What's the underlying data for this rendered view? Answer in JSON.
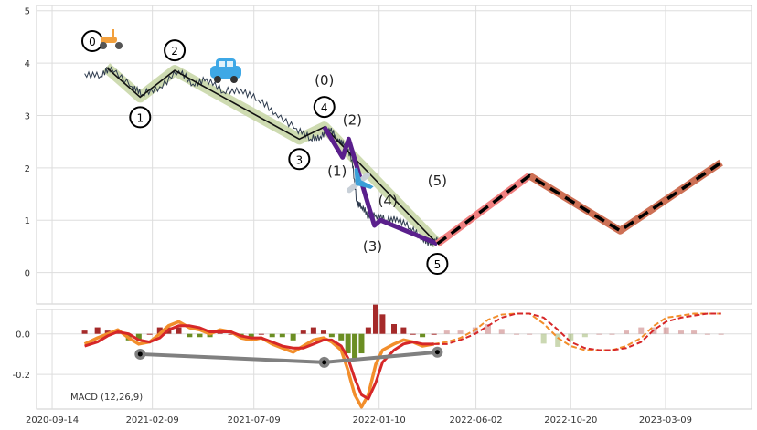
{
  "chart_data": [
    {
      "type": "line",
      "panel": "price",
      "y_ticks": [
        "5",
        "4",
        "3",
        "2",
        "1",
        "0"
      ],
      "ylim": [
        -0.6,
        5.1
      ],
      "grid": true,
      "x_tick_labels": [
        "2020-09-14",
        "2021-02-09",
        "2021-07-09",
        "2022-01-10",
        "2022-06-02",
        "2022-10-20",
        "2023-03-09"
      ],
      "x_tick_dates": [
        "2020-09-14",
        "2021-02-09",
        "2021-07-09",
        "2022-01-10",
        "2022-06-02",
        "2022-10-20",
        "2023-03-09"
      ],
      "xlim": [
        "2020-08-22",
        "2023-07-14"
      ],
      "price_series": {
        "dates": [
          "2020-11-01",
          "2020-11-25",
          "2020-12-10",
          "2021-01-10",
          "2021-01-25",
          "2021-02-20",
          "2021-03-20",
          "2021-04-10",
          "2021-04-30",
          "2021-05-25",
          "2021-06-20",
          "2021-07-15",
          "2021-08-10",
          "2021-09-10",
          "2021-10-01",
          "2021-10-15",
          "2021-10-28",
          "2021-11-10",
          "2021-11-20",
          "2021-12-01",
          "2021-12-08",
          "2021-12-15",
          "2021-12-25",
          "2022-01-05",
          "2022-01-20",
          "2022-02-05",
          "2022-02-25",
          "2022-03-15",
          "2022-03-28",
          "2022-04-08"
        ],
        "values": [
          3.8,
          3.75,
          3.92,
          3.55,
          3.4,
          3.55,
          3.85,
          3.6,
          3.7,
          3.45,
          3.5,
          3.3,
          3.05,
          2.75,
          2.55,
          2.6,
          2.75,
          2.55,
          2.45,
          2.15,
          1.35,
          1.25,
          1.1,
          1.1,
          1.0,
          1.05,
          0.85,
          0.65,
          0.55,
          0.62
        ],
        "color": "#2e3b4e"
      },
      "wave_primary": {
        "dates": [
          "2020-12-03",
          "2021-01-22",
          "2021-03-14",
          "2021-09-14",
          "2021-10-21",
          "2022-04-06"
        ],
        "values": [
          3.92,
          3.35,
          3.86,
          2.55,
          2.78,
          0.55
        ],
        "labels": [
          "0",
          "1",
          "2",
          "3",
          "4",
          "5"
        ],
        "line_color": "#111111",
        "band_color": "#c9d7a8"
      },
      "wave_sub": {
        "dates": [
          "2021-10-21",
          "2021-11-17",
          "2021-11-26",
          "2022-01-03",
          "2022-01-12",
          "2022-04-06"
        ],
        "values": [
          2.78,
          2.2,
          2.55,
          0.9,
          1.0,
          0.55
        ],
        "labels": [
          "(0)",
          "(1)",
          "(2)",
          "(3)",
          "(4)",
          "(5)"
        ],
        "color": "#5a1f8c"
      },
      "projection": {
        "dates": [
          "2022-04-06",
          "2022-08-20",
          "2023-01-01",
          "2023-05-30"
        ],
        "values": [
          0.55,
          1.85,
          0.8,
          2.1
        ],
        "red_color": "#f08080",
        "brown_color": "#cd7055",
        "dash_color": "#000000"
      },
      "icons": [
        "scooter",
        "car",
        "airplane"
      ]
    },
    {
      "type": "line",
      "panel": "macd",
      "title": "MACD (12,26,9)",
      "y_ticks": [
        "0.0",
        "-0.2"
      ],
      "ylim": [
        -0.37,
        0.12
      ],
      "grid": true,
      "macd": {
        "dates": [
          "2020-11-01",
          "2020-11-20",
          "2020-12-05",
          "2020-12-20",
          "2021-01-05",
          "2021-01-20",
          "2021-02-05",
          "2021-02-20",
          "2021-03-05",
          "2021-03-20",
          "2021-04-05",
          "2021-04-20",
          "2021-05-05",
          "2021-05-20",
          "2021-06-05",
          "2021-06-20",
          "2021-07-05",
          "2021-07-20",
          "2021-08-05",
          "2021-08-20",
          "2021-09-05",
          "2021-09-20",
          "2021-10-05",
          "2021-10-20",
          "2021-11-01",
          "2021-11-15",
          "2021-11-25",
          "2021-12-05",
          "2021-12-15",
          "2021-12-25",
          "2022-01-05",
          "2022-01-15",
          "2022-02-01",
          "2022-02-15",
          "2022-03-01",
          "2022-03-15",
          "2022-04-01",
          "2022-04-20",
          "2022-05-10",
          "2022-06-01",
          "2022-06-20",
          "2022-07-10",
          "2022-08-01",
          "2022-08-20",
          "2022-09-10",
          "2022-10-01",
          "2022-10-20",
          "2022-11-10",
          "2022-12-01",
          "2022-12-20",
          "2023-01-10",
          "2023-02-01",
          "2023-02-20",
          "2023-03-10",
          "2023-04-01",
          "2023-04-20",
          "2023-05-10",
          "2023-05-30"
        ],
        "values": [
          -0.05,
          -0.02,
          0.0,
          0.02,
          -0.02,
          -0.05,
          -0.04,
          0.0,
          0.04,
          0.06,
          0.03,
          0.02,
          0.0,
          0.02,
          0.01,
          -0.02,
          -0.03,
          -0.02,
          -0.05,
          -0.07,
          -0.09,
          -0.06,
          -0.03,
          -0.02,
          -0.04,
          -0.08,
          -0.18,
          -0.3,
          -0.36,
          -0.3,
          -0.15,
          -0.08,
          -0.05,
          -0.03,
          -0.04,
          -0.06,
          -0.05,
          -0.04,
          -0.02,
          0.02,
          0.07,
          0.095,
          0.1,
          0.1,
          0.05,
          -0.02,
          -0.06,
          -0.08,
          -0.08,
          -0.08,
          -0.06,
          -0.02,
          0.04,
          0.08,
          0.09,
          0.1,
          0.1,
          0.1
        ],
        "color": "#f28e2b"
      },
      "signal": {
        "dates": [
          "2020-11-01",
          "2020-11-20",
          "2020-12-05",
          "2020-12-20",
          "2021-01-05",
          "2021-01-20",
          "2021-02-05",
          "2021-02-20",
          "2021-03-05",
          "2021-03-20",
          "2021-04-05",
          "2021-04-20",
          "2021-05-05",
          "2021-05-20",
          "2021-06-05",
          "2021-06-20",
          "2021-07-05",
          "2021-07-20",
          "2021-08-05",
          "2021-08-20",
          "2021-09-05",
          "2021-09-20",
          "2021-10-05",
          "2021-10-20",
          "2021-11-01",
          "2021-11-15",
          "2021-11-25",
          "2021-12-05",
          "2021-12-15",
          "2021-12-25",
          "2022-01-05",
          "2022-01-15",
          "2022-02-01",
          "2022-02-15",
          "2022-03-01",
          "2022-03-15",
          "2022-04-01",
          "2022-04-20",
          "2022-05-10",
          "2022-06-01",
          "2022-06-20",
          "2022-07-10",
          "2022-08-01",
          "2022-08-20",
          "2022-09-10",
          "2022-10-01",
          "2022-10-20",
          "2022-11-10",
          "2022-12-01",
          "2022-12-20",
          "2023-01-10",
          "2023-02-01",
          "2023-02-20",
          "2023-03-10",
          "2023-04-01",
          "2023-04-20",
          "2023-05-10",
          "2023-05-30"
        ],
        "values": [
          -0.06,
          -0.04,
          -0.01,
          0.01,
          0.0,
          -0.03,
          -0.04,
          -0.02,
          0.02,
          0.04,
          0.04,
          0.03,
          0.01,
          0.01,
          0.01,
          -0.01,
          -0.02,
          -0.02,
          -0.04,
          -0.06,
          -0.07,
          -0.07,
          -0.05,
          -0.03,
          -0.03,
          -0.06,
          -0.12,
          -0.22,
          -0.3,
          -0.32,
          -0.24,
          -0.14,
          -0.08,
          -0.05,
          -0.04,
          -0.05,
          -0.05,
          -0.05,
          -0.03,
          0.0,
          0.04,
          0.08,
          0.1,
          0.1,
          0.08,
          0.02,
          -0.04,
          -0.07,
          -0.08,
          -0.08,
          -0.07,
          -0.04,
          0.02,
          0.06,
          0.08,
          0.09,
          0.1,
          0.1
        ],
        "color": "#d62728"
      },
      "wave_points": {
        "dates": [
          "2021-01-22",
          "2021-10-21",
          "2022-04-06"
        ],
        "values": [
          -0.1,
          -0.14,
          -0.09
        ],
        "color": "#808080"
      },
      "histogram_colors": {
        "positive": "#a52a2a",
        "negative": "#6b8e23"
      }
    }
  ]
}
